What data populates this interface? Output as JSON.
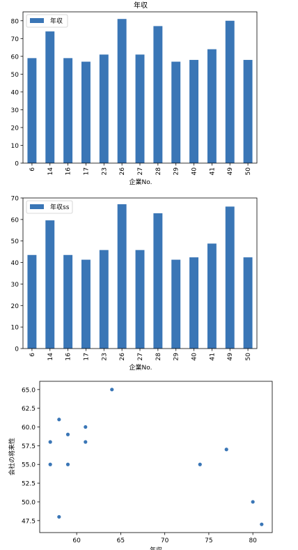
{
  "chart_data": [
    {
      "type": "bar",
      "title": "年収",
      "xlabel": "企業No.",
      "ylabel": "",
      "categories": [
        "6",
        "14",
        "16",
        "17",
        "23",
        "26",
        "27",
        "28",
        "29",
        "40",
        "41",
        "49",
        "50"
      ],
      "series": [
        {
          "name": "年収",
          "values": [
            59,
            74,
            59,
            57,
            61,
            81,
            61,
            77,
            57,
            58,
            64,
            80,
            58
          ]
        }
      ],
      "ylim": [
        0,
        85
      ],
      "yticks": [
        0,
        10,
        20,
        30,
        40,
        50,
        60,
        70,
        80
      ],
      "legend": "top-left",
      "grid": false,
      "color": "#3a76b6"
    },
    {
      "type": "bar",
      "title": "",
      "xlabel": "企業No.",
      "ylabel": "",
      "categories": [
        "6",
        "14",
        "16",
        "17",
        "23",
        "26",
        "27",
        "28",
        "29",
        "40",
        "41",
        "49",
        "50"
      ],
      "series": [
        {
          "name": "年収ss",
          "values": [
            43.5,
            59.6,
            43.5,
            41.3,
            45.8,
            67.1,
            45.8,
            62.9,
            41.3,
            42.4,
            48.8,
            66.0,
            42.4
          ]
        }
      ],
      "ylim": [
        0,
        70
      ],
      "yticks": [
        0,
        10,
        20,
        30,
        40,
        50,
        60,
        70
      ],
      "legend": "top-left",
      "grid": false,
      "color": "#3a76b6"
    },
    {
      "type": "scatter",
      "title": "",
      "xlabel": "年収",
      "ylabel": "会社の将来性",
      "points": [
        {
          "x": 59,
          "y": 55
        },
        {
          "x": 74,
          "y": 55
        },
        {
          "x": 59,
          "y": 59
        },
        {
          "x": 57,
          "y": 58
        },
        {
          "x": 61,
          "y": 60
        },
        {
          "x": 81,
          "y": 47
        },
        {
          "x": 61,
          "y": 58
        },
        {
          "x": 77,
          "y": 57
        },
        {
          "x": 57,
          "y": 55
        },
        {
          "x": 58,
          "y": 48
        },
        {
          "x": 64,
          "y": 65
        },
        {
          "x": 80,
          "y": 50
        },
        {
          "x": 58,
          "y": 61
        }
      ],
      "xlim": [
        55.8,
        82.2
      ],
      "ylim": [
        45.9,
        66.1
      ],
      "xticks": [
        60,
        65,
        70,
        75,
        80
      ],
      "yticks": [
        47.5,
        50.0,
        52.5,
        55.0,
        57.5,
        60.0,
        62.5,
        65.0
      ],
      "grid": false,
      "color": "#3a76b6"
    }
  ]
}
